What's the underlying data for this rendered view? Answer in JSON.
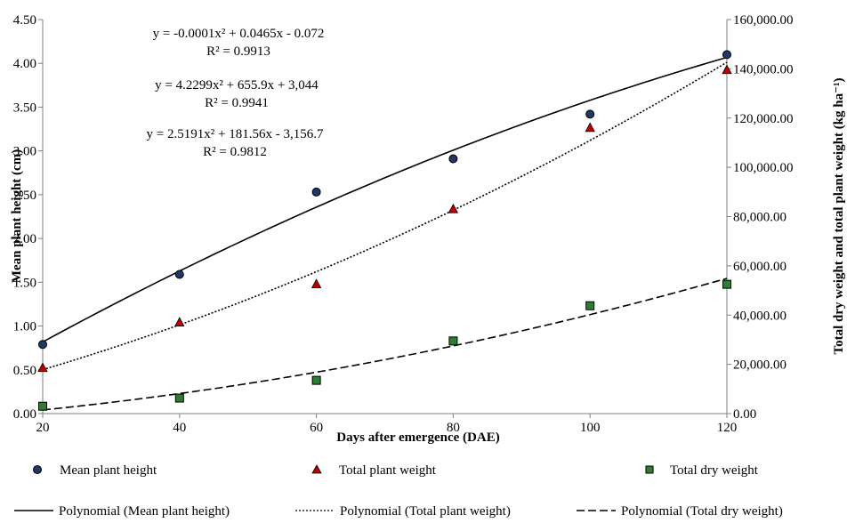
{
  "chart_data": {
    "type": "scatter",
    "xlabel": "Days after emergence (DAE)",
    "ylabel": "Mean plant height (cm)",
    "y2label": "Total dry weight and total plant weight (kg ha⁻¹)",
    "x_ticks": [
      "20",
      "40",
      "60",
      "80",
      "100",
      "120"
    ],
    "y_ticks": [
      "0.00",
      "0.50",
      "1.00",
      "1.50",
      "2.00",
      "2.50",
      "3.00",
      "3.50",
      "4.00",
      "4.50"
    ],
    "y2_ticks": [
      "0.00",
      "20,000.00",
      "40,000.00",
      "60,000.00",
      "80,000.00",
      "100,000.00",
      "120,000.00",
      "140,000.00",
      "160,000.00"
    ],
    "xlim": [
      20,
      120
    ],
    "ylim": [
      0,
      4.5
    ],
    "y2lim": [
      0,
      160000
    ],
    "grid": false,
    "series": [
      {
        "name": "Mean plant height",
        "axis": "left",
        "marker": "circle",
        "color": "#1f3864",
        "x": [
          20,
          40,
          60,
          80,
          100,
          120
        ],
        "y": [
          0.79,
          1.59,
          2.53,
          2.91,
          3.42,
          4.1
        ]
      },
      {
        "name": "Total plant weight",
        "axis": "right",
        "marker": "triangle",
        "color": "#c00000",
        "x": [
          20,
          40,
          60,
          80,
          100,
          120
        ],
        "y": [
          18500,
          37000,
          52500,
          83000,
          116000,
          139500
        ]
      },
      {
        "name": "Total dry weight",
        "axis": "right",
        "marker": "square",
        "color": "#2e7d32",
        "x": [
          20,
          40,
          60,
          80,
          100,
          120
        ],
        "y": [
          3000,
          6300,
          13500,
          29500,
          43800,
          52500
        ]
      }
    ],
    "trendlines": [
      {
        "name": "Polynomial (Mean plant height)",
        "axis": "left",
        "style": "solid",
        "coef": [
          -0.0001,
          0.0465,
          -0.072
        ],
        "equation": "y = -0.0001x² + 0.0465x - 0.072",
        "r2": "R² = 0.9913"
      },
      {
        "name": "Polynomial (Total plant weight)",
        "axis": "right",
        "style": "dotted",
        "coef": [
          4.2299,
          655.9,
          3044
        ],
        "equation": "y = 4.2299x² + 655.9x + 3,044",
        "r2": "R² = 0.9941"
      },
      {
        "name": "Polynomial (Total dry weight)",
        "axis": "right",
        "style": "dashed",
        "coef": [
          2.5191,
          181.56,
          -3156.7
        ],
        "equation": "y = 2.5191x² + 181.56x - 3,156.7",
        "r2": "R² = 0.9812"
      }
    ],
    "legend_position": "bottom"
  }
}
